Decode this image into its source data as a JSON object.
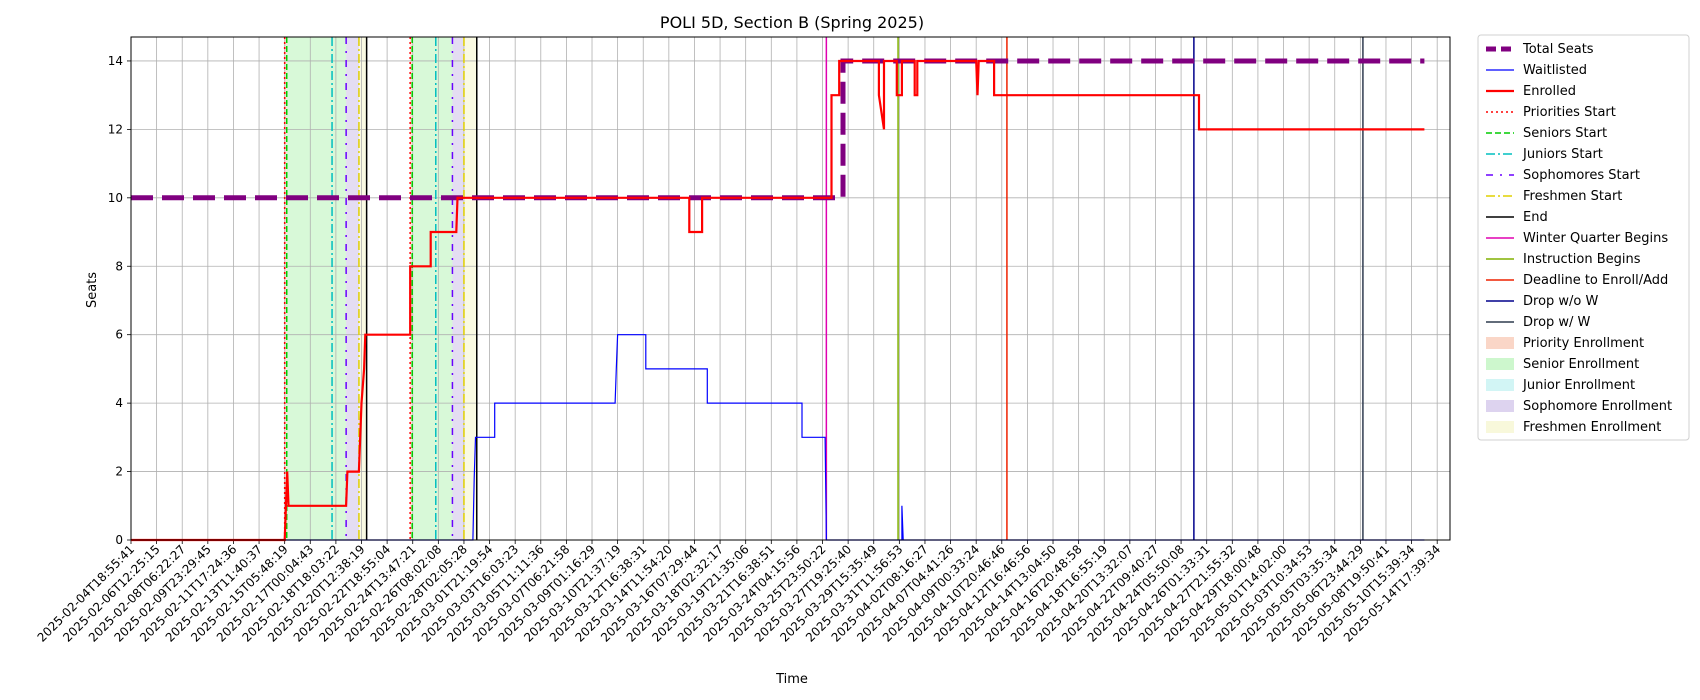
{
  "chart_data": {
    "type": "line",
    "title": "POLI 5D, Section B (Spring 2025)",
    "xlabel": "Time",
    "ylabel": "Seats",
    "ylim": [
      0,
      14.7
    ],
    "yticks": [
      0,
      2,
      4,
      6,
      8,
      10,
      12,
      14
    ],
    "grid": true,
    "legend_position": "outside-right",
    "x_tick_labels": [
      "2025-02-04T18:55:41",
      "2025-02-06T12:25:15",
      "2025-02-08T06:22:27",
      "2025-02-09T23:29:45",
      "2025-02-11T17:24:36",
      "2025-02-13T11:40:37",
      "2025-02-15T05:48:19",
      "2025-02-17T00:04:43",
      "2025-02-18T18:03:22",
      "2025-02-20T12:38:19",
      "2025-02-22T18:55:04",
      "2025-02-24T13:47:21",
      "2025-02-26T08:02:08",
      "2025-02-28T02:05:28",
      "2025-03-01T21:19:54",
      "2025-03-03T16:03:23",
      "2025-03-05T11:11:36",
      "2025-03-07T06:21:58",
      "2025-03-09T01:16:29",
      "2025-03-10T21:37:19",
      "2025-03-12T16:38:31",
      "2025-03-14T11:54:20",
      "2025-03-16T07:29:44",
      "2025-03-18T02:32:17",
      "2025-03-19T21:35:06",
      "2025-03-21T16:38:51",
      "2025-03-24T04:15:56",
      "2025-03-25T23:50:22",
      "2025-03-27T19:25:40",
      "2025-03-29T15:35:49",
      "2025-03-31T11:56:53",
      "2025-04-02T08:16:27",
      "2025-04-07T04:41:26",
      "2025-04-09T00:33:24",
      "2025-04-10T20:46:46",
      "2025-04-12T16:46:56",
      "2025-04-14T13:04:50",
      "2025-04-16T20:48:58",
      "2025-04-18T16:55:19",
      "2025-04-20T13:32:07",
      "2025-04-22T09:40:27",
      "2025-04-24T05:50:08",
      "2025-04-26T01:33:31",
      "2025-04-27T21:55:32",
      "2025-04-29T18:00:48",
      "2025-05-01T14:02:00",
      "2025-05-03T10:34:53",
      "2025-05-05T03:35:34",
      "2025-05-06T23:44:29",
      "2025-05-08T19:50:41",
      "2025-05-10T15:39:34",
      "2025-05-14T17:39:34"
    ],
    "series": [
      {
        "name": "Total Seats",
        "color": "#800080",
        "style": "thick-dashed",
        "points": [
          [
            0,
            10
          ],
          [
            27.8,
            10
          ],
          [
            27.8,
            14
          ],
          [
            50.5,
            14
          ]
        ]
      },
      {
        "name": "Waitlisted",
        "color": "#0000ff",
        "style": "thin-solid",
        "points": [
          [
            0,
            0
          ],
          [
            13.35,
            0
          ],
          [
            13.4,
            1.8
          ],
          [
            13.45,
            3
          ],
          [
            14.2,
            3
          ],
          [
            14.2,
            4
          ],
          [
            18.9,
            4
          ],
          [
            18.95,
            5
          ],
          [
            19.0,
            6
          ],
          [
            20.1,
            6
          ],
          [
            20.1,
            5
          ],
          [
            22.5,
            5
          ],
          [
            22.5,
            4
          ],
          [
            26.2,
            4
          ],
          [
            26.2,
            3
          ],
          [
            27.1,
            3
          ],
          [
            27.15,
            0
          ],
          [
            30.1,
            0
          ],
          [
            30.1,
            1
          ],
          [
            30.15,
            0
          ],
          [
            50.5,
            0
          ]
        ]
      },
      {
        "name": "Enrolled",
        "color": "#ff0000",
        "style": "solid",
        "points": [
          [
            0,
            0
          ],
          [
            6.0,
            0
          ],
          [
            6.1,
            2
          ],
          [
            6.15,
            1
          ],
          [
            8.4,
            1
          ],
          [
            8.45,
            2
          ],
          [
            8.9,
            2
          ],
          [
            8.95,
            3
          ],
          [
            9.0,
            4
          ],
          [
            9.1,
            5
          ],
          [
            9.15,
            6
          ],
          [
            10.9,
            6
          ],
          [
            10.9,
            8
          ],
          [
            11.7,
            8
          ],
          [
            11.7,
            9
          ],
          [
            12.7,
            9
          ],
          [
            12.75,
            10
          ],
          [
            21.8,
            10
          ],
          [
            21.8,
            9
          ],
          [
            22.3,
            9
          ],
          [
            22.3,
            10
          ],
          [
            27.35,
            10
          ],
          [
            27.35,
            13
          ],
          [
            27.65,
            13
          ],
          [
            27.65,
            14
          ],
          [
            29.2,
            14
          ],
          [
            29.2,
            13
          ],
          [
            29.4,
            12
          ],
          [
            29.4,
            14
          ],
          [
            29.9,
            14
          ],
          [
            29.9,
            13
          ],
          [
            30.1,
            13
          ],
          [
            30.1,
            14
          ],
          [
            30.6,
            14
          ],
          [
            30.6,
            13
          ],
          [
            30.7,
            13
          ],
          [
            30.7,
            14
          ],
          [
            33.0,
            14
          ],
          [
            33.05,
            13
          ],
          [
            33.1,
            14
          ],
          [
            33.7,
            14
          ],
          [
            33.7,
            13
          ],
          [
            41.7,
            13
          ],
          [
            41.7,
            12
          ],
          [
            50.5,
            12
          ]
        ]
      }
    ],
    "markers": [
      {
        "name": "Priorities Start",
        "color": "#ff0000",
        "style": "dotted"
      },
      {
        "name": "Seniors Start",
        "color": "#00cc00",
        "style": "dashed"
      },
      {
        "name": "Juniors Start",
        "color": "#00bfbf",
        "style": "dashdot"
      },
      {
        "name": "Sophomores Start",
        "color": "#6a00ff",
        "style": "sparse-dashdot"
      },
      {
        "name": "Freshmen Start",
        "color": "#e0d000",
        "style": "dashdot"
      },
      {
        "name": "End",
        "color": "#000000",
        "style": "solid"
      },
      {
        "name": "Winter Quarter Begins",
        "color": "#e000b0",
        "style": "solid"
      },
      {
        "name": "Instruction Begins",
        "color": "#80b000",
        "style": "solid"
      },
      {
        "name": "Deadline to Enroll/Add",
        "color": "#ee2200",
        "style": "solid"
      },
      {
        "name": "Drop w/o W",
        "color": "#00008b",
        "style": "solid"
      },
      {
        "name": "Drop w/ W",
        "color": "#2f3b4f",
        "style": "solid"
      }
    ],
    "enrollment_periods": [
      {
        "name": "Priority Enrollment",
        "color": "#f4a582"
      },
      {
        "name": "Senior Enrollment",
        "color": "#90ee90"
      },
      {
        "name": "Junior Enrollment",
        "color": "#9be8e8"
      },
      {
        "name": "Sophomore Enrollment",
        "color": "#b39ddb"
      },
      {
        "name": "Freshmen Enrollment",
        "color": "#f0f0b0"
      }
    ],
    "vertical_lines": [
      {
        "marker": "Priorities Start",
        "x": 6.0
      },
      {
        "marker": "Seniors Start",
        "x": 6.08
      },
      {
        "marker": "Juniors Start",
        "x": 7.85
      },
      {
        "marker": "Sophomores Start",
        "x": 8.4
      },
      {
        "marker": "Freshmen Start",
        "x": 8.9
      },
      {
        "marker": "End",
        "x": 9.2
      },
      {
        "marker": "Priorities Start",
        "x": 10.9
      },
      {
        "marker": "Seniors Start",
        "x": 10.98
      },
      {
        "marker": "Juniors Start",
        "x": 11.9
      },
      {
        "marker": "Sophomores Start",
        "x": 12.55
      },
      {
        "marker": "Freshmen Start",
        "x": 13.0
      },
      {
        "marker": "End",
        "x": 13.5
      },
      {
        "marker": "Winter Quarter Begins",
        "x": 27.15
      },
      {
        "marker": "Instruction Begins",
        "x": 29.95
      },
      {
        "marker": "Deadline to Enroll/Add",
        "x": 34.2
      },
      {
        "marker": "Drop w/o W",
        "x": 41.5
      },
      {
        "marker": "Drop w/ W",
        "x": 48.1
      }
    ],
    "shaded_spans": [
      {
        "period": "Priority Enrollment",
        "x0": 6.0,
        "x1": 6.08
      },
      {
        "period": "Senior Enrollment",
        "x0": 6.08,
        "x1": 8.4
      },
      {
        "period": "Sophomore Enrollment",
        "x0": 8.4,
        "x1": 8.9
      },
      {
        "period": "Freshmen Enrollment",
        "x0": 8.9,
        "x1": 9.2
      },
      {
        "period": "Priority Enrollment",
        "x0": 10.9,
        "x1": 10.98
      },
      {
        "period": "Senior Enrollment",
        "x0": 10.98,
        "x1": 12.55
      },
      {
        "period": "Sophomore Enrollment",
        "x0": 12.55,
        "x1": 13.0
      },
      {
        "period": "Freshmen Enrollment",
        "x0": 13.0,
        "x1": 13.5
      }
    ]
  }
}
